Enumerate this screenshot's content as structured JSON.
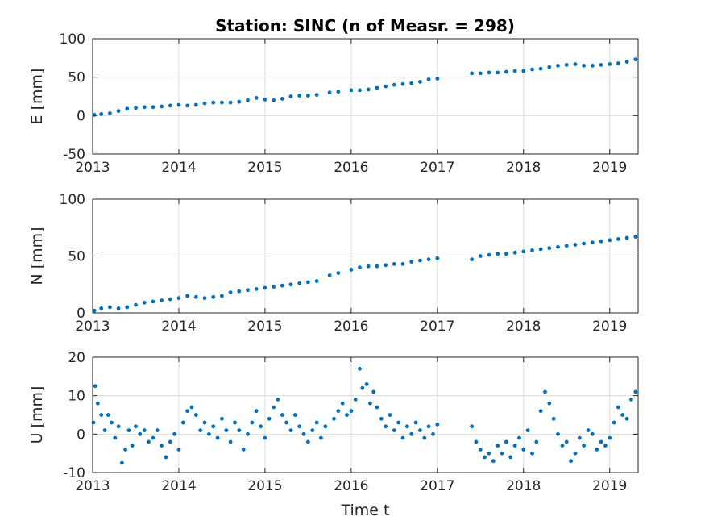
{
  "title": "Station: SINC (n of Measr. = 298)",
  "colors": {
    "marker": "#0072BD",
    "grid": "#DCDCDC",
    "axis": "#262626"
  },
  "chart_data": [
    {
      "type": "scatter",
      "ylabel": "E [mm]",
      "xlabel": "",
      "xlim": [
        2013,
        2019.33
      ],
      "ylim": [
        -50,
        100
      ],
      "x_ticks": [
        2013,
        2014,
        2015,
        2016,
        2017,
        2018,
        2019
      ],
      "x_tick_labels": [
        "2013",
        "2014",
        "2015",
        "2016",
        "2017",
        "2018",
        "2019"
      ],
      "y_ticks": [
        -50,
        0,
        50,
        100
      ],
      "y_tick_labels": [
        "-50",
        "0",
        "50",
        "100"
      ],
      "grid": true,
      "series": [
        {
          "x": [
            2013.02,
            2013.1,
            2013.2,
            2013.3,
            2013.4,
            2013.5,
            2013.6,
            2013.7,
            2013.8,
            2013.9,
            2014.0,
            2014.1,
            2014.2,
            2014.3,
            2014.4,
            2014.5,
            2014.6,
            2014.7,
            2014.8,
            2014.9,
            2015.0,
            2015.1,
            2015.2,
            2015.3,
            2015.4,
            2015.5,
            2015.6,
            2015.75,
            2015.85,
            2016.0,
            2016.1,
            2016.2,
            2016.3,
            2016.4,
            2016.5,
            2016.6,
            2016.7,
            2016.8,
            2016.9,
            2017.0,
            2017.4,
            2017.5,
            2017.6,
            2017.7,
            2017.8,
            2017.9,
            2018.0,
            2018.1,
            2018.2,
            2018.3,
            2018.4,
            2018.5,
            2018.6,
            2018.7,
            2018.8,
            2018.9,
            2019.0,
            2019.1,
            2019.2,
            2019.3
          ],
          "y": [
            1,
            2,
            3,
            6,
            9,
            10,
            11,
            11,
            12,
            13,
            14,
            13,
            14,
            16,
            17,
            17,
            17,
            18,
            20,
            23,
            21,
            20,
            22,
            25,
            26,
            26,
            27,
            30,
            31,
            33,
            33,
            34,
            36,
            38,
            40,
            41,
            42,
            44,
            47,
            48,
            55,
            55,
            56,
            56,
            57,
            58,
            58,
            60,
            61,
            63,
            65,
            66,
            67,
            65,
            65,
            66,
            67,
            68,
            70,
            73
          ]
        }
      ]
    },
    {
      "type": "scatter",
      "ylabel": "N [mm]",
      "xlabel": "",
      "xlim": [
        2013,
        2019.33
      ],
      "ylim": [
        0,
        100
      ],
      "x_ticks": [
        2013,
        2014,
        2015,
        2016,
        2017,
        2018,
        2019
      ],
      "x_tick_labels": [
        "2013",
        "2014",
        "2015",
        "2016",
        "2017",
        "2018",
        "2019"
      ],
      "y_ticks": [
        0,
        50,
        100
      ],
      "y_tick_labels": [
        "0",
        "50",
        "100"
      ],
      "grid": true,
      "series": [
        {
          "x": [
            2013.02,
            2013.1,
            2013.2,
            2013.3,
            2013.4,
            2013.5,
            2013.6,
            2013.7,
            2013.8,
            2013.9,
            2014.0,
            2014.1,
            2014.2,
            2014.3,
            2014.4,
            2014.5,
            2014.6,
            2014.7,
            2014.8,
            2014.9,
            2015.0,
            2015.1,
            2015.2,
            2015.3,
            2015.4,
            2015.5,
            2015.6,
            2015.75,
            2015.85,
            2016.0,
            2016.1,
            2016.2,
            2016.3,
            2016.4,
            2016.5,
            2016.6,
            2016.7,
            2016.8,
            2016.9,
            2017.0,
            2017.4,
            2017.5,
            2017.6,
            2017.7,
            2017.8,
            2017.9,
            2018.0,
            2018.1,
            2018.2,
            2018.3,
            2018.4,
            2018.5,
            2018.6,
            2018.7,
            2018.8,
            2018.9,
            2019.0,
            2019.1,
            2019.2,
            2019.3
          ],
          "y": [
            2,
            4,
            5,
            4,
            5,
            7,
            9,
            10,
            11,
            12,
            13,
            15,
            14,
            13,
            14,
            15,
            18,
            19,
            20,
            21,
            22,
            23,
            24,
            25,
            26,
            27,
            28,
            33,
            35,
            38,
            40,
            41,
            41,
            42,
            43,
            43,
            45,
            46,
            47,
            48,
            47,
            50,
            51,
            52,
            52,
            53,
            54,
            55,
            56,
            57,
            58,
            59,
            60,
            61,
            62,
            63,
            64,
            65,
            66,
            67
          ]
        }
      ]
    },
    {
      "type": "scatter",
      "ylabel": "U [mm]",
      "xlabel": "Time t",
      "xlim": [
        2013,
        2019.33
      ],
      "ylim": [
        -10,
        20
      ],
      "x_ticks": [
        2013,
        2014,
        2015,
        2016,
        2017,
        2018,
        2019
      ],
      "x_tick_labels": [
        "2013",
        "2014",
        "2015",
        "2016",
        "2017",
        "2018",
        "2019"
      ],
      "y_ticks": [
        -10,
        0,
        10,
        20
      ],
      "y_tick_labels": [
        "-10",
        "0",
        "10",
        "20"
      ],
      "grid": true,
      "series": [
        {
          "x": [
            2013.01,
            2013.03,
            2013.06,
            2013.1,
            2013.14,
            2013.18,
            2013.22,
            2013.26,
            2013.3,
            2013.34,
            2013.38,
            2013.42,
            2013.46,
            2013.5,
            2013.55,
            2013.6,
            2013.65,
            2013.7,
            2013.75,
            2013.8,
            2013.85,
            2013.9,
            2013.95,
            2014.0,
            2014.05,
            2014.1,
            2014.15,
            2014.2,
            2014.25,
            2014.3,
            2014.35,
            2014.4,
            2014.45,
            2014.5,
            2014.55,
            2014.6,
            2014.65,
            2014.7,
            2014.75,
            2014.8,
            2014.85,
            2014.9,
            2014.95,
            2015.0,
            2015.05,
            2015.1,
            2015.15,
            2015.2,
            2015.25,
            2015.3,
            2015.35,
            2015.4,
            2015.45,
            2015.5,
            2015.55,
            2015.6,
            2015.65,
            2015.7,
            2015.8,
            2015.85,
            2015.9,
            2015.95,
            2016.0,
            2016.05,
            2016.1,
            2016.13,
            2016.18,
            2016.22,
            2016.26,
            2016.3,
            2016.35,
            2016.4,
            2016.45,
            2016.5,
            2016.55,
            2016.6,
            2016.65,
            2016.7,
            2016.75,
            2016.8,
            2016.85,
            2016.9,
            2016.95,
            2017.0,
            2017.4,
            2017.45,
            2017.5,
            2017.55,
            2017.6,
            2017.65,
            2017.7,
            2017.75,
            2017.8,
            2017.85,
            2017.9,
            2017.95,
            2018.0,
            2018.05,
            2018.1,
            2018.15,
            2018.2,
            2018.25,
            2018.3,
            2018.35,
            2018.4,
            2018.45,
            2018.5,
            2018.55,
            2018.6,
            2018.65,
            2018.7,
            2018.75,
            2018.8,
            2018.85,
            2018.9,
            2018.95,
            2019.0,
            2019.05,
            2019.1,
            2019.15,
            2019.2,
            2019.25,
            2019.3
          ],
          "y": [
            3,
            12.5,
            8,
            5,
            1,
            5,
            3,
            -1,
            2,
            -7.5,
            -4,
            1,
            -3,
            2,
            0,
            1,
            -2,
            -1,
            1,
            -3,
            -6,
            -2,
            0,
            -4,
            3,
            6,
            7,
            5,
            1,
            3,
            0,
            2,
            -1,
            4,
            1,
            -2,
            3,
            1,
            -4,
            0,
            3,
            6,
            2,
            -1,
            4,
            7,
            9,
            5,
            3,
            1,
            5,
            2,
            0,
            -2,
            1,
            3,
            -1,
            2,
            4,
            6,
            8,
            5,
            6,
            9,
            17,
            12,
            13,
            8,
            11,
            7,
            4,
            2,
            5,
            1,
            3,
            -1,
            2,
            0,
            3,
            1,
            -1,
            2,
            0,
            2.5,
            2,
            -2,
            -4,
            -6,
            -5,
            -7,
            -3,
            -5,
            -2,
            -6,
            -3,
            -1,
            -4,
            1,
            -5,
            -2,
            6,
            11,
            8,
            4,
            0,
            -3,
            -2,
            -7,
            -5,
            -1,
            -3,
            1,
            0,
            -4,
            -2,
            -3,
            -1,
            3,
            7,
            5,
            4,
            9,
            11
          ]
        }
      ]
    }
  ]
}
